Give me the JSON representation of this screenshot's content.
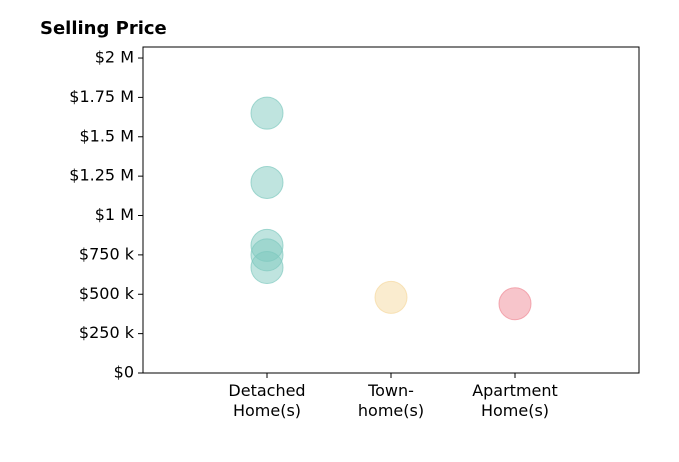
{
  "chart_data": {
    "type": "strip",
    "title": "Selling Price",
    "categories": [
      "Detached\nHome(s)",
      "Town-\nhome(s)",
      "Apartment\nHome(s)"
    ],
    "values": [
      [
        1650000,
        1210000,
        810000,
        750000,
        670000
      ],
      [
        480000
      ],
      [
        440000
      ]
    ],
    "colors": [
      "#7fc9bf",
      "#f5d9a0",
      "#f08c97"
    ],
    "ylim": [
      0,
      2070000
    ],
    "yticks": [
      {
        "value": 0,
        "label": "$0"
      },
      {
        "value": 250000,
        "label": "$250 k"
      },
      {
        "value": 500000,
        "label": "$500 k"
      },
      {
        "value": 750000,
        "label": "$750 k"
      },
      {
        "value": 1000000,
        "label": "$1 M"
      },
      {
        "value": 1250000,
        "label": "$1.25 M"
      },
      {
        "value": 1500000,
        "label": "$1.5 M"
      },
      {
        "value": 1750000,
        "label": "$1.75 M"
      },
      {
        "value": 2000000,
        "label": "$2 M"
      }
    ],
    "grid": false
  }
}
